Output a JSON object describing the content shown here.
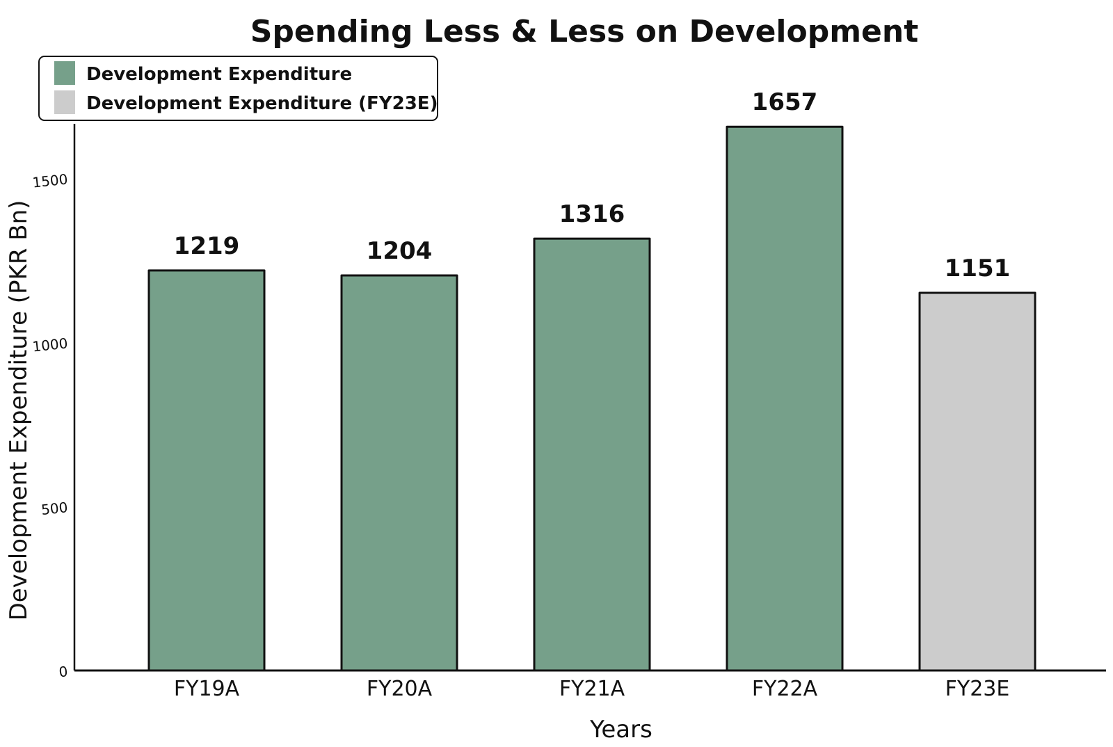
{
  "chart_data": {
    "type": "bar",
    "title": "Spending Less & Less on Development",
    "xlabel": "Years",
    "ylabel": "Development Expenditure (PKR Bn)",
    "categories": [
      "FY19A",
      "FY20A",
      "FY21A",
      "FY22A",
      "FY23E"
    ],
    "values": [
      1219,
      1204,
      1316,
      1657,
      1151
    ],
    "value_labels": [
      "1219",
      "1204",
      "1316",
      "1657",
      "1151"
    ],
    "bar_colors": [
      "#76a08a",
      "#76a08a",
      "#76a08a",
      "#76a08a",
      "#cccccc"
    ],
    "yticks": [
      0,
      500,
      1000,
      1500
    ],
    "ytick_labels": [
      "0",
      "500",
      "1000",
      "1500"
    ],
    "ylim": [
      0,
      1700
    ],
    "grid": false,
    "legend": {
      "position": "top-left",
      "entries": [
        {
          "label": "Development Expenditure",
          "color": "#76a08a"
        },
        {
          "label": "Development Expenditure (FY23E)",
          "color": "#cccccc"
        }
      ]
    }
  }
}
